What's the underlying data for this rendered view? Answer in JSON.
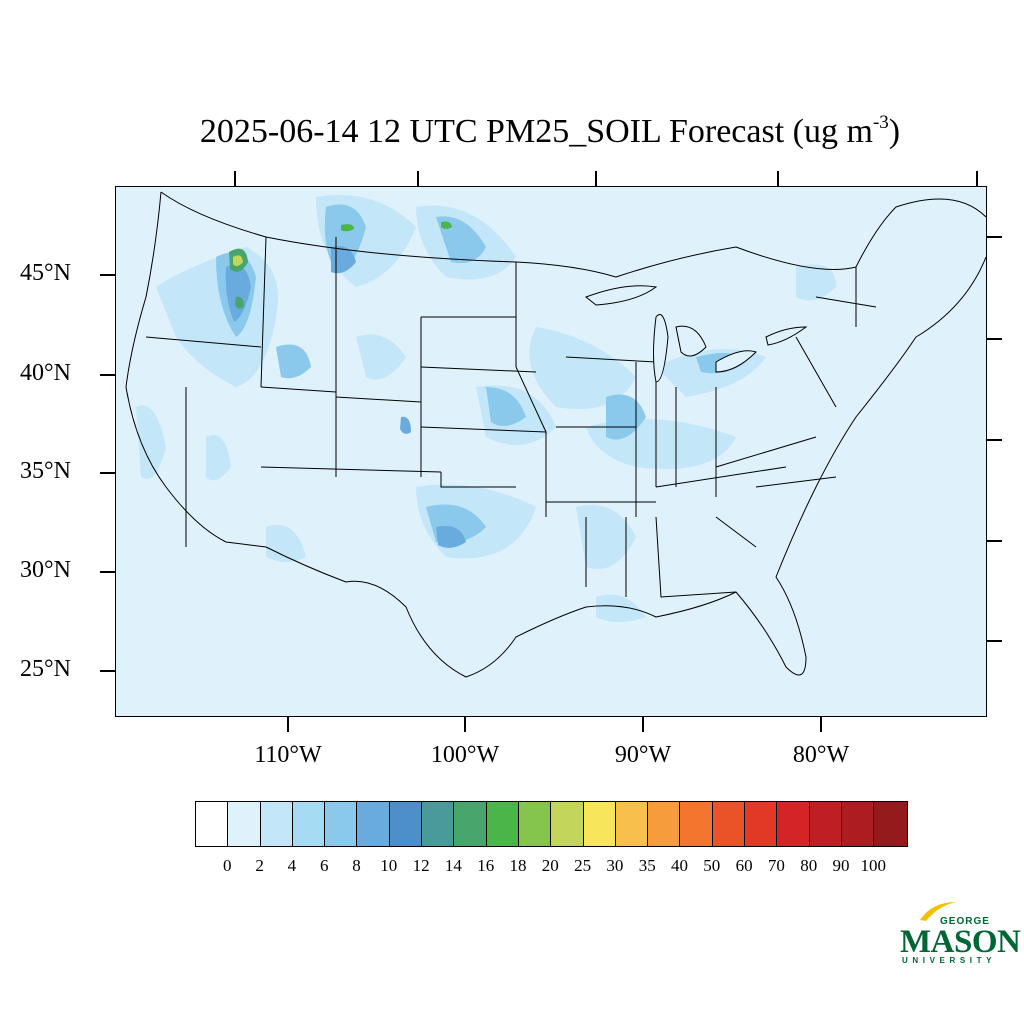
{
  "title": {
    "main": "2025-06-14 12 UTC PM25_SOIL Forecast (ug m",
    "superscript": "-3",
    "close": ")"
  },
  "axes": {
    "lat_labels": [
      "45°N",
      "40°N",
      "35°N",
      "30°N",
      "25°N"
    ],
    "lon_labels": [
      "110°W",
      "100°W",
      "90°W",
      "80°W"
    ]
  },
  "colorbar": {
    "levels": [
      "0",
      "2",
      "4",
      "6",
      "8",
      "10",
      "12",
      "14",
      "16",
      "18",
      "20",
      "25",
      "30",
      "35",
      "40",
      "50",
      "60",
      "70",
      "80",
      "90",
      "100"
    ],
    "colors": [
      "#ffffff",
      "#dff1fb",
      "#c3e6f8",
      "#a6dbf4",
      "#8ac8ec",
      "#6aabdf",
      "#4d8fcb",
      "#4a9a9a",
      "#48a66c",
      "#4bb54a",
      "#86c54d",
      "#c3d65a",
      "#f7e65b",
      "#f8c04a",
      "#f79c3c",
      "#f3752e",
      "#ea5228",
      "#e23826",
      "#d42428",
      "#bf1e24",
      "#ad1c21",
      "#951a1c"
    ]
  },
  "logo": {
    "top_line": "GEORGE",
    "wordmark": "MASON",
    "bottom_line": "UNIVERSITY"
  }
}
